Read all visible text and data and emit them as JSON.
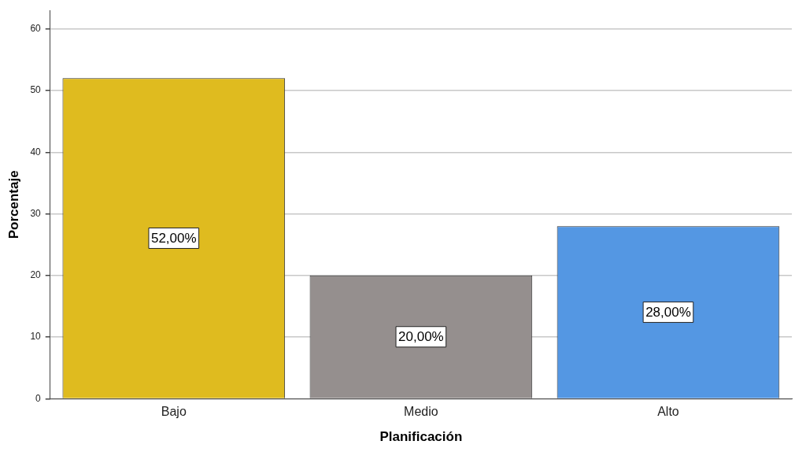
{
  "chart_data": {
    "type": "bar",
    "xlabel": "Planificación",
    "ylabel": "Porcentaje",
    "categories": [
      "Bajo",
      "Medio",
      "Alto"
    ],
    "values": [
      52,
      20,
      28
    ],
    "colors": [
      "#dfbb1f",
      "#958f8e",
      "#5497e3"
    ],
    "value_labels": [
      "52,00%",
      "20,00%",
      "28,00%"
    ],
    "ylim": [
      0,
      63
    ],
    "yticks": [
      0,
      10,
      20,
      30,
      40,
      50,
      60
    ],
    "grid": "y",
    "legend": false
  }
}
